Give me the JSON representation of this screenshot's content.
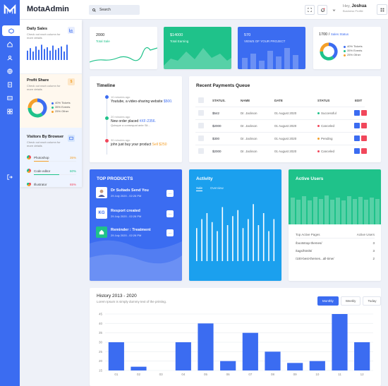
{
  "brand": {
    "name": "MotaAdmin"
  },
  "search": {
    "placeholder": "Search"
  },
  "user": {
    "greeting": "Hey,",
    "name": "Joshua",
    "role": "Business Profile"
  },
  "sidebar": {
    "daily_sales": {
      "title": "Daily Sales",
      "subtitle": "Check out each column for more details",
      "bars": [
        0.55,
        0.7,
        0.5,
        0.8,
        0.6,
        0.9,
        0.65,
        0.75,
        0.55,
        0.85,
        0.6,
        0.7,
        0.8,
        0.5,
        0.9
      ]
    },
    "profit_share": {
      "title": "Profit Share",
      "subtitle": "Check out each column for more details",
      "legend": [
        "40% Tickets",
        "35% Events",
        "25% Other"
      ],
      "values": [
        40,
        35,
        25
      ]
    },
    "visitors": {
      "title": "Visitors By Browser",
      "subtitle": "Check out each column for more details",
      "rows": [
        {
          "name": "Photoshop",
          "pct": "35%",
          "color": "#f4a02a",
          "value": 35
        },
        {
          "name": "Code editor",
          "pct": "60%",
          "color": "#1fc28a",
          "value": 60
        },
        {
          "name": "Illustrator",
          "pct": "65%",
          "color": "#f1475b",
          "value": 65
        }
      ]
    }
  },
  "stats": [
    {
      "value": "2000",
      "label": "Total Sale"
    },
    {
      "value": "$14000",
      "label": "Total Earning"
    },
    {
      "value": "570",
      "label": "VIEWS OF YOUR PROJECT"
    }
  ],
  "sales_status": {
    "value": "1700",
    "title": "Sales Status",
    "legend": [
      "40% Tickets",
      "35% Events",
      "25% Other"
    ],
    "values": [
      40,
      35,
      25
    ]
  },
  "timeline": {
    "title": "Timeline",
    "items": [
      {
        "time": "10 minutes ago",
        "text": "Youtube, a video-sharing website",
        "highlight": "$500.",
        "sub": ""
      },
      {
        "time": "20 minutes ago",
        "text": "New order placed",
        "highlight": "#XF-2356.",
        "sub": "Quisque a consequat ante Sit..."
      },
      {
        "time": "30 minutes ago",
        "text": "john just buy your product",
        "highlight": "Sell $250",
        "sub": ""
      }
    ]
  },
  "payments": {
    "title": "Recent Payments Queue",
    "headers": [
      "STATUS.",
      "NAME",
      "DATE",
      "STATUS",
      "EDIT"
    ],
    "rows": [
      {
        "amount": "$542",
        "name": "Dr. Jackson",
        "date": "01 August 2020",
        "status": "Successful",
        "color": "#1fc28a"
      },
      {
        "amount": "$2000",
        "name": "Dr. Jackson",
        "date": "01 August 2020",
        "status": "Canceled",
        "color": "#f1475b"
      },
      {
        "amount": "$300",
        "name": "Dr. Jackson",
        "date": "01 August 2020",
        "status": "Pending",
        "color": "#f4a02a"
      },
      {
        "amount": "$2000",
        "name": "Dr. Jackson",
        "date": "01 August 2020",
        "status": "Canceled",
        "color": "#f1475b"
      }
    ]
  },
  "top_products": {
    "title": "TOP PRODUCTS",
    "items": [
      {
        "icon": "",
        "title": "Dr Sultads Send You",
        "date": "29 July 2020 - 02:26 PM",
        "more": "..."
      },
      {
        "icon": "KG",
        "title": "Resport created",
        "date": "29 July 2020 - 02:26 PM",
        "more": "..."
      },
      {
        "icon": "",
        "title": "Reminder : Treatment",
        "date": "29 July 2020 - 02:26 PM",
        "more": "..."
      }
    ]
  },
  "activity": {
    "title": "Activity",
    "tabs": [
      "Sale",
      "Overview"
    ],
    "bars": [
      0.55,
      0.7,
      0.8,
      0.65,
      0.5,
      0.9,
      0.6,
      0.75,
      0.85,
      0.55,
      0.7,
      0.95,
      0.6,
      0.8,
      0.5,
      0.7
    ]
  },
  "active_users": {
    "title": "Active Users",
    "col1": "Top Active Pages",
    "col2": "Active Users",
    "rows": [
      {
        "page": "/bootstrap-themes/",
        "n": "3"
      },
      {
        "page": "/tags/html5/",
        "n": "3"
      },
      {
        "page": "/100-best-themes...all-time/",
        "n": "2"
      }
    ]
  },
  "history": {
    "title": "History 2013 - 2020",
    "subtitle": "Lorem Ipsum is simply dummy text of the printing.",
    "buttons": [
      "Monthly",
      "Weekly",
      "Today"
    ]
  },
  "chart_data": {
    "type": "bar",
    "categories": [
      "01",
      "02",
      "03",
      "04",
      "05",
      "06",
      "07",
      "08",
      "09",
      "10",
      "11",
      "12"
    ],
    "values": [
      30,
      17,
      15,
      30,
      40,
      20,
      35,
      25,
      19,
      20,
      45,
      30
    ],
    "ylim": [
      15,
      45
    ],
    "yticks": [
      15,
      20,
      25,
      30,
      35,
      40,
      45
    ],
    "grid": true,
    "color": "#3b6cf1"
  }
}
